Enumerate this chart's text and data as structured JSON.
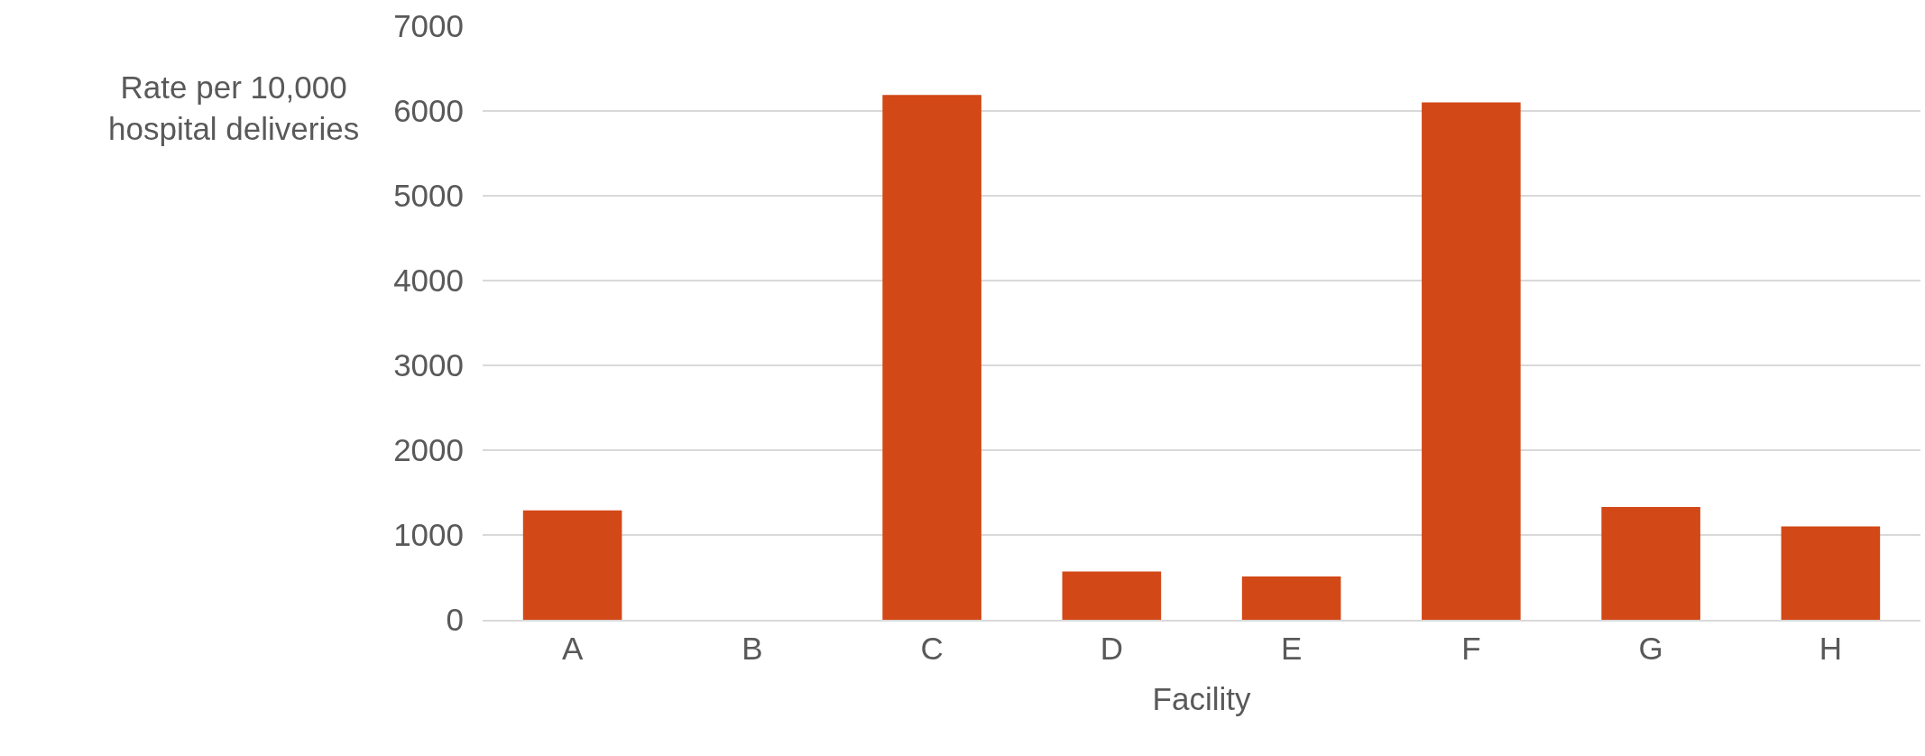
{
  "chart_data": {
    "type": "bar",
    "ylabel": "Rate per 10,000\nhospital deliveries",
    "xlabel": "Facility",
    "categories": [
      "A",
      "B",
      "C",
      "D",
      "E",
      "F",
      "G",
      "H"
    ],
    "values": [
      1290,
      0,
      6190,
      570,
      510,
      6100,
      1330,
      1100
    ],
    "color": "#d24817",
    "ylim": [
      0,
      7000
    ],
    "yticks": [
      0,
      1000,
      2000,
      3000,
      4000,
      5000,
      6000,
      7000
    ],
    "grid": "y"
  }
}
